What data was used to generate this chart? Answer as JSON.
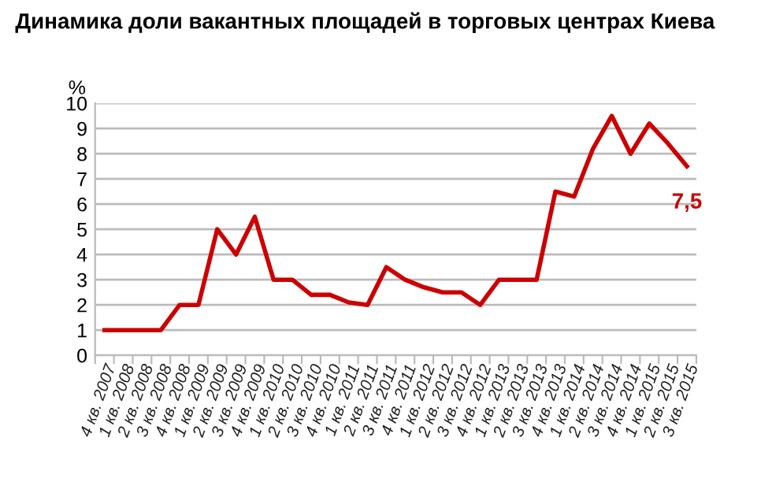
{
  "chart_data": {
    "type": "line",
    "title": "Динамика доли вакантных площадей в торговых центрах Киева",
    "ylabel": "%",
    "categories": [
      "4 кв. 2007",
      "1 кв. 2008",
      "2 кв. 2008",
      "3 кв. 2008",
      "4 кв. 2008",
      "1 кв. 2009",
      "2 кв. 2009",
      "3 кв. 2009",
      "4 кв. 2009",
      "1 кв. 2010",
      "2 кв. 2010",
      "3 кв. 2010",
      "4 кв. 2010",
      "1 кв. 2011",
      "2 кв. 2011",
      "3 кв. 2011",
      "4 кв. 2011",
      "1 кв. 2012",
      "2 кв. 2012",
      "3 кв. 2012",
      "4 кв. 2012",
      "1 кв. 2013",
      "2 кв. 2013",
      "3 кв. 2013",
      "4 кв. 2013",
      "1 кв. 2014",
      "2 кв. 2014",
      "3 кв. 2014",
      "4 кв. 2014",
      "1 кв. 2015",
      "2 кв. 2015",
      "3 кв. 2015"
    ],
    "series": [
      {
        "color": "#cc0000",
        "values": [
          1,
          1,
          1,
          1,
          2,
          2,
          5,
          4,
          5.5,
          3,
          3,
          2.4,
          2.4,
          2.1,
          2,
          3.5,
          3,
          2.7,
          2.5,
          2.5,
          2,
          3,
          3,
          3,
          6.5,
          6.3,
          8.2,
          9.5,
          8,
          9.2,
          8.4,
          7.5
        ],
        "value_labels": [
          null,
          null,
          null,
          null,
          null,
          null,
          null,
          null,
          null,
          null,
          null,
          null,
          null,
          null,
          null,
          null,
          null,
          null,
          null,
          null,
          null,
          null,
          null,
          null,
          null,
          null,
          null,
          null,
          null,
          null,
          null,
          "7,5"
        ]
      }
    ],
    "ylim": [
      0,
      10
    ],
    "yticks": [
      0,
      1,
      2,
      3,
      4,
      5,
      6,
      7,
      8,
      9,
      10
    ],
    "grid": "y",
    "legend": false,
    "marker": "none",
    "line_style": "solid"
  }
}
